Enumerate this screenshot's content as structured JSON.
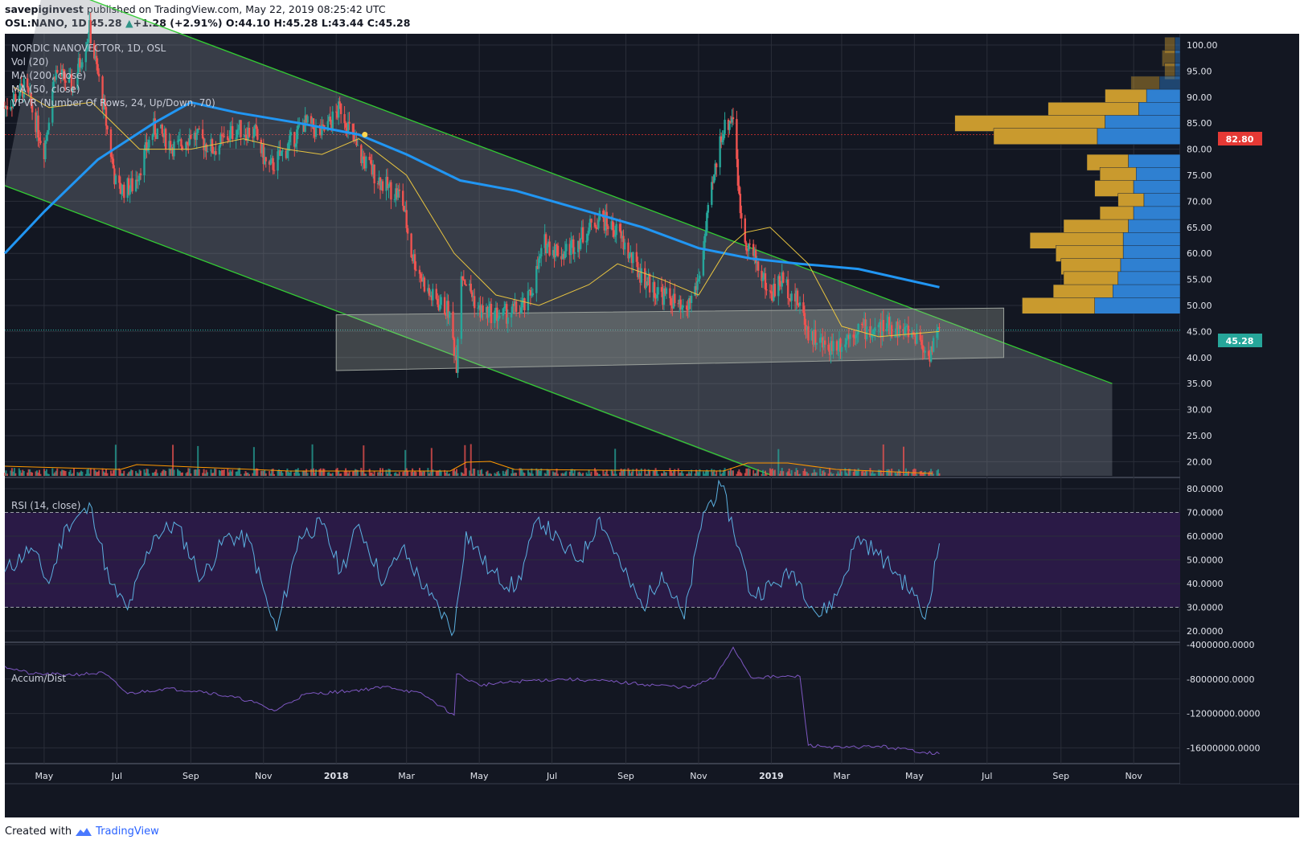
{
  "header": {
    "author": "savepiginvest",
    "published_text": "published on TradingView.com, May 22, 2019 08:25:42 UTC",
    "symbol": "OSL:NANO, 1D",
    "last": "45.28",
    "change": "+1.28 (+2.91%)",
    "open_label": "O:",
    "open": "44.10",
    "high_label": "H:",
    "high": "45.28",
    "low_label": "L:",
    "low": "43.44",
    "close_label": "C:",
    "close": "45.28"
  },
  "indicators": {
    "title": "NORDIC NANOVECTOR, 1D, OSL",
    "vol": "Vol (20)",
    "ma200": "MA (200, close)",
    "ma50": "MA (50, close)",
    "vpvr": "VPVR (Number Of Rows, 24, Up/Down, 70)",
    "rsi": "RSI (14, close)",
    "accum": "Accum/Dist"
  },
  "badges": {
    "red": "82.80",
    "green": "45.28"
  },
  "footer": {
    "created": "Created with",
    "brand": "TradingView"
  },
  "colors": {
    "bg": "#131722",
    "up": "#26a69a",
    "down": "#ef5350",
    "ma200": "#2196f3",
    "ma50": "#e8c440",
    "channel": "#33cc33",
    "rsi": "#5bb0e0",
    "rsi_band": "#2a1a46",
    "ad": "#7e57c2",
    "vp_up": "#2f80d1",
    "vp_down": "#c99a2e"
  },
  "chart_data": [
    {
      "type": "candlestick",
      "title": "NORDIC NANOVECTOR, 1D, OSL",
      "x_ticks": [
        "May",
        "Jul",
        "Sep",
        "Nov",
        "2018",
        "Mar",
        "May",
        "Jul",
        "Sep",
        "Nov",
        "2019",
        "Mar",
        "May",
        "Jul",
        "Sep",
        "Nov"
      ],
      "y_ticks": [
        "100.00",
        "95.00",
        "90.00",
        "85.00",
        "80.00",
        "75.00",
        "70.00",
        "65.00",
        "60.00",
        "55.00",
        "50.00",
        "45.00",
        "40.00",
        "35.00",
        "30.00",
        "25.00",
        "20.00"
      ],
      "ylim": [
        17.5,
        102
      ],
      "price_path": [
        [
          "2017-03-29",
          88
        ],
        [
          "2017-04-15",
          92
        ],
        [
          "2017-05-01",
          80
        ],
        [
          "2017-05-10",
          95
        ],
        [
          "2017-05-25",
          92
        ],
        [
          "2017-06-08",
          103
        ],
        [
          "2017-06-20",
          88
        ],
        [
          "2017-07-01",
          72
        ],
        [
          "2017-07-15",
          73
        ],
        [
          "2017-08-01",
          84
        ],
        [
          "2017-08-20",
          80
        ],
        [
          "2017-09-01",
          83
        ],
        [
          "2017-09-20",
          80
        ],
        [
          "2017-10-10",
          84
        ],
        [
          "2017-10-25",
          83
        ],
        [
          "2017-11-05",
          76
        ],
        [
          "2017-11-20",
          80
        ],
        [
          "2017-12-05",
          85
        ],
        [
          "2017-12-20",
          83
        ],
        [
          "2018-01-05",
          88
        ],
        [
          "2018-01-20",
          79
        ],
        [
          "2018-02-10",
          73
        ],
        [
          "2018-02-25",
          71
        ],
        [
          "2018-03-05",
          60
        ],
        [
          "2018-03-20",
          52
        ],
        [
          "2018-04-05",
          49
        ],
        [
          "2018-04-12",
          39
        ],
        [
          "2018-04-15",
          57
        ],
        [
          "2018-05-01",
          49
        ],
        [
          "2018-05-20",
          48
        ],
        [
          "2018-06-10",
          50
        ],
        [
          "2018-06-25",
          62
        ],
        [
          "2018-07-10",
          60
        ],
        [
          "2018-07-25",
          63
        ],
        [
          "2018-08-10",
          67
        ],
        [
          "2018-08-25",
          64
        ],
        [
          "2018-09-10",
          57
        ],
        [
          "2018-09-25",
          53
        ],
        [
          "2018-10-10",
          51
        ],
        [
          "2018-10-20",
          48
        ],
        [
          "2018-11-01",
          55
        ],
        [
          "2018-11-10",
          69
        ],
        [
          "2018-11-20",
          83
        ],
        [
          "2018-12-01",
          87
        ],
        [
          "2018-12-05",
          70
        ],
        [
          "2018-12-10",
          63
        ],
        [
          "2018-12-20",
          58
        ],
        [
          "2018-12-31",
          52
        ],
        [
          "2019-01-10",
          55
        ],
        [
          "2019-01-25",
          50
        ],
        [
          "2019-02-01",
          45
        ],
        [
          "2019-02-15",
          42
        ],
        [
          "2019-03-01",
          43
        ],
        [
          "2019-03-15",
          46
        ],
        [
          "2019-03-25",
          45
        ],
        [
          "2019-04-10",
          46
        ],
        [
          "2019-04-25",
          45
        ],
        [
          "2019-05-05",
          44
        ],
        [
          "2019-05-12",
          40
        ],
        [
          "2019-05-22",
          45.28
        ]
      ],
      "ma200_path": [
        [
          "2017-03-29",
          60
        ],
        [
          "2017-05-01",
          68
        ],
        [
          "2017-06-15",
          78
        ],
        [
          "2017-08-01",
          85
        ],
        [
          "2017-09-01",
          89
        ],
        [
          "2017-10-10",
          87
        ],
        [
          "2017-12-01",
          85
        ],
        [
          "2018-01-20",
          82.8
        ],
        [
          "2018-03-01",
          79
        ],
        [
          "2018-04-15",
          74
        ],
        [
          "2018-06-01",
          72
        ],
        [
          "2018-08-01",
          68
        ],
        [
          "2018-09-15",
          65
        ],
        [
          "2018-11-01",
          61
        ],
        [
          "2018-12-15",
          59
        ],
        [
          "2019-01-25",
          58
        ],
        [
          "2019-03-15",
          57
        ],
        [
          "2019-05-22",
          53.5
        ]
      ],
      "ma50_path": [
        [
          "2017-04-05",
          92
        ],
        [
          "2017-05-05",
          88
        ],
        [
          "2017-06-10",
          89
        ],
        [
          "2017-07-20",
          80
        ],
        [
          "2017-09-01",
          80
        ],
        [
          "2017-10-15",
          82
        ],
        [
          "2017-11-20",
          80
        ],
        [
          "2017-12-20",
          79
        ],
        [
          "2018-01-20",
          82
        ],
        [
          "2018-03-01",
          75
        ],
        [
          "2018-04-10",
          60
        ],
        [
          "2018-05-15",
          52
        ],
        [
          "2018-06-20",
          50
        ],
        [
          "2018-08-01",
          54
        ],
        [
          "2018-08-25",
          58
        ],
        [
          "2018-10-01",
          55
        ],
        [
          "2018-11-01",
          52
        ],
        [
          "2018-11-25",
          61
        ],
        [
          "2018-12-10",
          64
        ],
        [
          "2018-12-31",
          65
        ],
        [
          "2019-02-01",
          58
        ],
        [
          "2019-03-01",
          46
        ],
        [
          "2019-04-01",
          44
        ],
        [
          "2019-05-22",
          45
        ]
      ],
      "channel_upper": [
        [
          "2017-05-01",
          112
        ],
        [
          "2019-10-14",
          35
        ]
      ],
      "channel_lower": [
        [
          "2017-03-29",
          73
        ],
        [
          "2018-12-31",
          17.5
        ]
      ],
      "consolidation_box": [
        [
          "2018-01-01",
          48.2
        ],
        [
          "2019-07-15",
          49.5
        ],
        [
          "2019-07-15",
          40
        ],
        [
          "2018-01-01",
          37.5
        ]
      ],
      "volume_profile": [
        {
          "price": 100,
          "up": 0.02,
          "down": 0.04
        },
        {
          "price": 97.5,
          "up": 0.02,
          "down": 0.05
        },
        {
          "price": 95,
          "up": 0.02,
          "down": 0.04
        },
        {
          "price": 92.5,
          "up": 0.08,
          "down": 0.11
        },
        {
          "price": 90,
          "up": 0.13,
          "down": 0.16
        },
        {
          "price": 87.5,
          "up": 0.16,
          "down": 0.35
        },
        {
          "price": 85,
          "up": 0.29,
          "down": 0.58
        },
        {
          "price": 82.5,
          "up": 0.32,
          "down": 0.4
        },
        {
          "price": 77.5,
          "up": 0.2,
          "down": 0.16
        },
        {
          "price": 75,
          "up": 0.17,
          "down": 0.14
        },
        {
          "price": 72.5,
          "up": 0.18,
          "down": 0.15
        },
        {
          "price": 70,
          "up": 0.14,
          "down": 0.1
        },
        {
          "price": 67.5,
          "up": 0.18,
          "down": 0.13
        },
        {
          "price": 65,
          "up": 0.2,
          "down": 0.25
        },
        {
          "price": 62.5,
          "up": 0.22,
          "down": 0.36
        },
        {
          "price": 60,
          "up": 0.22,
          "down": 0.26
        },
        {
          "price": 57.5,
          "up": 0.23,
          "down": 0.23
        },
        {
          "price": 55,
          "up": 0.24,
          "down": 0.21
        },
        {
          "price": 52.5,
          "up": 0.26,
          "down": 0.23
        },
        {
          "price": 50,
          "up": 0.33,
          "down": 0.28
        }
      ]
    },
    {
      "type": "line",
      "title": "RSI (14, close)",
      "y_ticks": [
        "80.0000",
        "70.0000",
        "60.0000",
        "50.0000",
        "40.0000",
        "30.0000",
        "20.0000"
      ],
      "ylim": [
        17,
        83
      ],
      "band": [
        30,
        70
      ],
      "path": [
        [
          "2017-03-29",
          45
        ],
        [
          "2017-04-20",
          55
        ],
        [
          "2017-05-05",
          40
        ],
        [
          "2017-05-20",
          65
        ],
        [
          "2017-06-10",
          72
        ],
        [
          "2017-06-25",
          40
        ],
        [
          "2017-07-10",
          29
        ],
        [
          "2017-08-01",
          60
        ],
        [
          "2017-08-20",
          65
        ],
        [
          "2017-09-10",
          42
        ],
        [
          "2017-10-01",
          60
        ],
        [
          "2017-10-20",
          58
        ],
        [
          "2017-11-05",
          30
        ],
        [
          "2017-11-12",
          20
        ],
        [
          "2017-12-01",
          60
        ],
        [
          "2017-12-20",
          65
        ],
        [
          "2018-01-05",
          45
        ],
        [
          "2018-01-20",
          65
        ],
        [
          "2018-02-10",
          40
        ],
        [
          "2018-02-25",
          55
        ],
        [
          "2018-03-20",
          35
        ],
        [
          "2018-04-10",
          20
        ],
        [
          "2018-04-20",
          62
        ],
        [
          "2018-05-10",
          45
        ],
        [
          "2018-06-01",
          38
        ],
        [
          "2018-06-20",
          68
        ],
        [
          "2018-07-10",
          55
        ],
        [
          "2018-07-25",
          50
        ],
        [
          "2018-08-10",
          68
        ],
        [
          "2018-08-30",
          45
        ],
        [
          "2018-09-15",
          30
        ],
        [
          "2018-10-01",
          45
        ],
        [
          "2018-10-20",
          25
        ],
        [
          "2018-11-05",
          70
        ],
        [
          "2018-11-20",
          81
        ],
        [
          "2018-12-05",
          55
        ],
        [
          "2018-12-15",
          35
        ],
        [
          "2019-01-05",
          40
        ],
        [
          "2019-01-20",
          45
        ],
        [
          "2019-02-10",
          26
        ],
        [
          "2019-02-25",
          35
        ],
        [
          "2019-03-15",
          60
        ],
        [
          "2019-04-01",
          52
        ],
        [
          "2019-04-15",
          45
        ],
        [
          "2019-05-01",
          35
        ],
        [
          "2019-05-10",
          25
        ],
        [
          "2019-05-22",
          57
        ]
      ]
    },
    {
      "type": "line",
      "title": "Accum/Dist",
      "y_ticks": [
        "-4000000.0000",
        "-8000000.0000",
        "-12000000.0000",
        "-16000000.0000"
      ],
      "ylim": [
        -17800000,
        -3500000
      ],
      "path": [
        [
          "2017-03-29",
          -6500000
        ],
        [
          "2017-04-20",
          -7400000
        ],
        [
          "2017-05-20",
          -7500000
        ],
        [
          "2017-06-20",
          -7300000
        ],
        [
          "2017-07-10",
          -9700000
        ],
        [
          "2017-08-10",
          -9100000
        ],
        [
          "2017-09-10",
          -9400000
        ],
        [
          "2017-10-20",
          -10500000
        ],
        [
          "2017-11-10",
          -11700000
        ],
        [
          "2017-12-05",
          -9800000
        ],
        [
          "2018-01-10",
          -9400000
        ],
        [
          "2018-02-15",
          -8900000
        ],
        [
          "2018-03-15",
          -9800000
        ],
        [
          "2018-04-10",
          -12200000
        ],
        [
          "2018-04-12",
          -7400000
        ],
        [
          "2018-05-01",
          -8700000
        ],
        [
          "2018-06-10",
          -8200000
        ],
        [
          "2018-07-10",
          -8000000
        ],
        [
          "2018-08-10",
          -8200000
        ],
        [
          "2018-09-15",
          -8600000
        ],
        [
          "2018-10-25",
          -9000000
        ],
        [
          "2018-11-15",
          -7800000
        ],
        [
          "2018-11-30",
          -4300000
        ],
        [
          "2018-12-15",
          -7800000
        ],
        [
          "2019-01-25",
          -7700000
        ],
        [
          "2019-02-01",
          -15700000
        ],
        [
          "2019-03-01",
          -16000000
        ],
        [
          "2019-04-01",
          -15800000
        ],
        [
          "2019-05-22",
          -16700000
        ]
      ]
    }
  ]
}
